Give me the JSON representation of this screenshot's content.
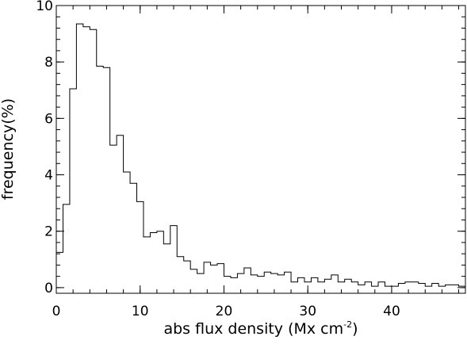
{
  "chart_data": {
    "type": "histogram",
    "xlabel": "abs flux density (Mx cm",
    "xlabel_sup": "-2",
    "xlabel_close": ")",
    "ylabel": "frequency(%)",
    "xlim": [
      0,
      48.8
    ],
    "ylim": [
      -0.2,
      10
    ],
    "xticks": [
      0,
      10,
      20,
      30,
      40
    ],
    "xtick_labels": [
      "0",
      "10",
      "20",
      "30",
      "40"
    ],
    "xtick_minor_step": 2,
    "yticks": [
      0,
      2,
      4,
      6,
      8,
      10
    ],
    "ytick_labels": [
      "0",
      "2",
      "4",
      "6",
      "8",
      "10"
    ],
    "ytick_minor_step": 0.4,
    "grid": false,
    "bin_width": 0.8,
    "bin_start": 0,
    "values": [
      1.25,
      2.95,
      7.05,
      9.35,
      9.25,
      9.15,
      7.85,
      7.8,
      5.05,
      5.4,
      4.1,
      3.7,
      3.05,
      1.8,
      1.95,
      2.0,
      1.55,
      2.2,
      1.1,
      0.95,
      0.65,
      0.5,
      0.9,
      0.8,
      0.85,
      0.4,
      0.35,
      0.5,
      0.7,
      0.45,
      0.4,
      0.55,
      0.5,
      0.45,
      0.55,
      0.2,
      0.35,
      0.2,
      0.35,
      0.2,
      0.3,
      0.45,
      0.2,
      0.3,
      0.2,
      0.1,
      0.2,
      0.05,
      0.2,
      0.05,
      0.05,
      0.15,
      0.2,
      0.2,
      0.15,
      0.05,
      0.15,
      0.05,
      0.1,
      0.1,
      0.05
    ]
  }
}
